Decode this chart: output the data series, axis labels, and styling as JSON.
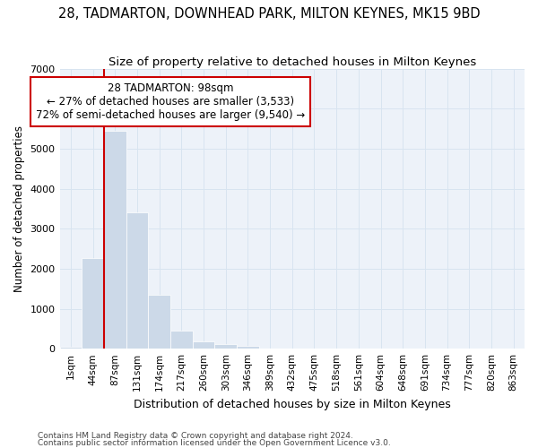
{
  "title": "28, TADMARTON, DOWNHEAD PARK, MILTON KEYNES, MK15 9BD",
  "subtitle": "Size of property relative to detached houses in Milton Keynes",
  "xlabel": "Distribution of detached houses by size in Milton Keynes",
  "ylabel": "Number of detached properties",
  "footnote1": "Contains HM Land Registry data © Crown copyright and database right 2024.",
  "footnote2": "Contains public sector information licensed under the Open Government Licence v3.0.",
  "bar_labels": [
    "1sqm",
    "44sqm",
    "87sqm",
    "131sqm",
    "174sqm",
    "217sqm",
    "260sqm",
    "303sqm",
    "346sqm",
    "389sqm",
    "432sqm",
    "475sqm",
    "518sqm",
    "561sqm",
    "604sqm",
    "648sqm",
    "691sqm",
    "734sqm",
    "777sqm",
    "820sqm",
    "863sqm"
  ],
  "bar_values": [
    55,
    2270,
    5450,
    3400,
    1350,
    450,
    175,
    115,
    80,
    0,
    0,
    0,
    0,
    0,
    0,
    0,
    0,
    0,
    0,
    0,
    0
  ],
  "bar_color": "#ccd9e8",
  "bar_edgecolor": "#ccd9e8",
  "grid_color": "#d8e4f0",
  "bg_color": "#edf2f9",
  "red_line_x_label": "87sqm",
  "annotation_line1": "28 TADMARTON: 98sqm",
  "annotation_line2": "← 27% of detached houses are smaller (3,533)",
  "annotation_line3": "72% of semi-detached houses are larger (9,540) →",
  "annotation_box_color": "#ffffff",
  "annotation_box_edge": "#cc0000",
  "red_line_color": "#cc0000",
  "ylim": [
    0,
    7000
  ],
  "title_fontsize": 10.5,
  "subtitle_fontsize": 9.5,
  "annotation_fontsize": 8.5,
  "tick_fontsize": 7.5,
  "ylabel_fontsize": 8.5,
  "xlabel_fontsize": 9,
  "footnote_fontsize": 6.5
}
